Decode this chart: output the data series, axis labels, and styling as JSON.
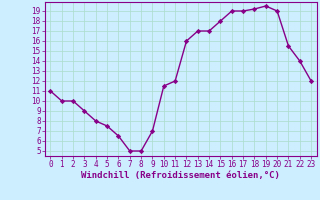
{
  "x": [
    0,
    1,
    2,
    3,
    4,
    5,
    6,
    7,
    8,
    9,
    10,
    11,
    12,
    13,
    14,
    15,
    16,
    17,
    18,
    19,
    20,
    21,
    22,
    23
  ],
  "y": [
    11,
    10,
    10,
    9,
    8,
    7.5,
    6.5,
    5,
    5,
    7,
    11.5,
    12,
    16,
    17,
    17,
    18,
    19,
    19,
    19.2,
    19.5,
    19,
    15.5,
    14,
    12
  ],
  "line_color": "#880088",
  "marker": "D",
  "marker_size": 2.2,
  "line_width": 1.0,
  "xlabel": "Windchill (Refroidissement éolien,°C)",
  "xlabel_fontsize": 6.5,
  "ylim": [
    4.5,
    19.9
  ],
  "xlim": [
    -0.5,
    23.5
  ],
  "yticks": [
    5,
    6,
    7,
    8,
    9,
    10,
    11,
    12,
    13,
    14,
    15,
    16,
    17,
    18,
    19
  ],
  "xticks": [
    0,
    1,
    2,
    3,
    4,
    5,
    6,
    7,
    8,
    9,
    10,
    11,
    12,
    13,
    14,
    15,
    16,
    17,
    18,
    19,
    20,
    21,
    22,
    23
  ],
  "tick_fontsize": 5.5,
  "bg_color": "#cceeff",
  "grid_color": "#aaddcc",
  "spine_color": "#880088",
  "tick_color": "#880088",
  "label_color": "#880088"
}
